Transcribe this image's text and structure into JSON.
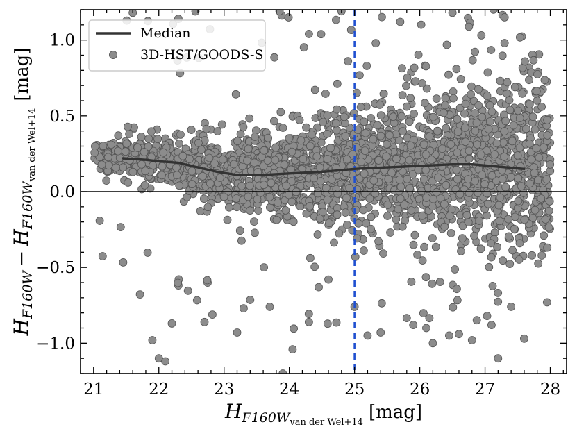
{
  "chart_data": {
    "type": "scatter",
    "xlabel": {
      "main": "H",
      "sub": "F160W",
      "subsub": "van der Wel+14",
      "unit": "[mag]"
    },
    "ylabel": {
      "a_main": "H",
      "a_sub": "F160W",
      "minus": "−",
      "b_main": "H",
      "b_sub": "F160W",
      "b_subsub": "van der Wel+14",
      "unit": "[mag]"
    },
    "xlim": [
      20.8,
      28.25
    ],
    "ylim": [
      -1.2,
      1.2
    ],
    "xticks": [
      21,
      22,
      23,
      24,
      25,
      26,
      27,
      28
    ],
    "xtick_labels": [
      "21",
      "22",
      "23",
      "24",
      "25",
      "26",
      "27",
      "28"
    ],
    "yticks": [
      -1.0,
      -0.5,
      0.0,
      0.5,
      1.0
    ],
    "ytick_labels": [
      "−1.0",
      "−0.5",
      "0.0",
      "0.5",
      "1.0"
    ],
    "reference_lines": {
      "horizontal_y": 0.0,
      "vertical_x": 25.0,
      "vertical_color": "#1f4fd0"
    },
    "series": [
      {
        "name": "Median",
        "kind": "line",
        "color": "#333333",
        "x": [
          21.45,
          21.8,
          22.0,
          22.3,
          22.6,
          22.9,
          23.2,
          23.6,
          24.0,
          24.5,
          25.0,
          25.5,
          26.0,
          26.5,
          26.8,
          27.2,
          27.6
        ],
        "y": [
          0.22,
          0.21,
          0.2,
          0.19,
          0.16,
          0.13,
          0.11,
          0.11,
          0.12,
          0.13,
          0.15,
          0.16,
          0.17,
          0.18,
          0.18,
          0.165,
          0.15
        ]
      },
      {
        "name": "3D-HST/GOODS-S",
        "kind": "scatter",
        "color": "#8c8c8c",
        "edge_color": "#555555",
        "count": 2600,
        "x_range": [
          21.0,
          28.0
        ],
        "trend": "follows the median curve; scatter widens toward faint magnitudes",
        "outliers": {
          "x": [
            21.9,
            22.0,
            22.1,
            22.2,
            22.7,
            23.2,
            23.3,
            23.7,
            23.9,
            24.05,
            24.3,
            24.45,
            24.6,
            25.0,
            25.2,
            25.4,
            25.9,
            26.1,
            26.2,
            26.45,
            26.6,
            26.8,
            27.1,
            27.2,
            27.4,
            27.6,
            27.95,
            21.6,
            22.3,
            23.85,
            24.8,
            25.7,
            26.5,
            27.3,
            24.3,
            24.9,
            27.3
          ],
          "y": [
            -0.98,
            -1.1,
            -1.12,
            -0.87,
            -0.86,
            -0.93,
            -0.77,
            -0.76,
            -1.2,
            -1.04,
            -0.86,
            -0.63,
            -0.58,
            -0.76,
            -0.95,
            -0.93,
            -0.88,
            -0.9,
            -1.0,
            -0.95,
            -0.94,
            -0.98,
            -0.88,
            -1.1,
            -0.76,
            -0.97,
            -0.73,
            1.18,
            1.14,
            1.19,
            1.19,
            1.12,
            1.18,
            1.15,
            1.04,
            0.86,
            0.98
          ]
        }
      }
    ],
    "legend": {
      "position": "top-left",
      "entries": [
        "Median",
        "3D-HST/GOODS-S"
      ]
    }
  }
}
